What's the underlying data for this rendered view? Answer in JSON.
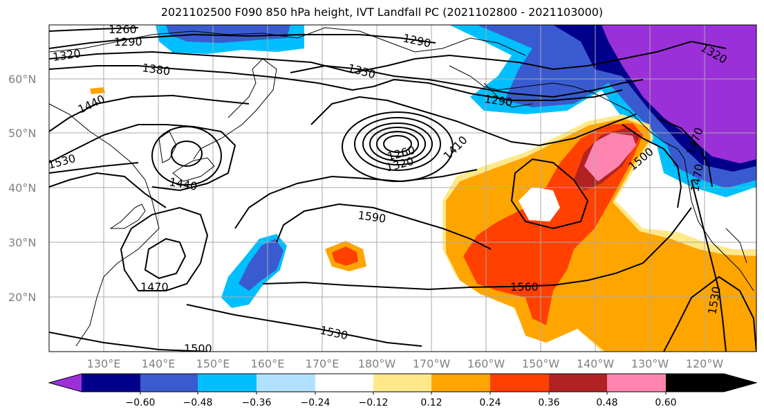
{
  "title": "2021102500 F090 850 hPa height, IVT Landfall PC (2021102800 - 2021103000)",
  "map": {
    "lat_labels": [
      "60°N",
      "50°N",
      "40°N",
      "30°N",
      "20°N"
    ],
    "lon_labels": [
      "130°E",
      "140°E",
      "150°E",
      "160°E",
      "170°E",
      "180°W",
      "170°W",
      "160°W",
      "150°W",
      "140°W",
      "130°W",
      "120°W"
    ],
    "contour_labels": [
      "1260",
      "1290",
      "1320",
      "1380",
      "1350",
      "1290",
      "1440",
      "1290",
      "1260",
      "1320",
      "1410",
      "1440",
      "1530",
      "1320",
      "1500",
      "1470",
      "1590",
      "1470",
      "1560",
      "1530",
      "1530",
      "1500",
      "1470"
    ]
  },
  "colorbar": {
    "tick_labels": [
      "−0.60",
      "−0.48",
      "−0.36",
      "−0.24",
      "−0.12",
      "0.12",
      "0.24",
      "0.36",
      "0.48",
      "0.60"
    ],
    "colors": [
      "#9b30d9",
      "#00008b",
      "#3a5bd0",
      "#00bfff",
      "#b0e2ff",
      "#ffffff",
      "#ffe88a",
      "#ffa500",
      "#ff4000",
      "#b22222",
      "#ff85b0"
    ]
  }
}
